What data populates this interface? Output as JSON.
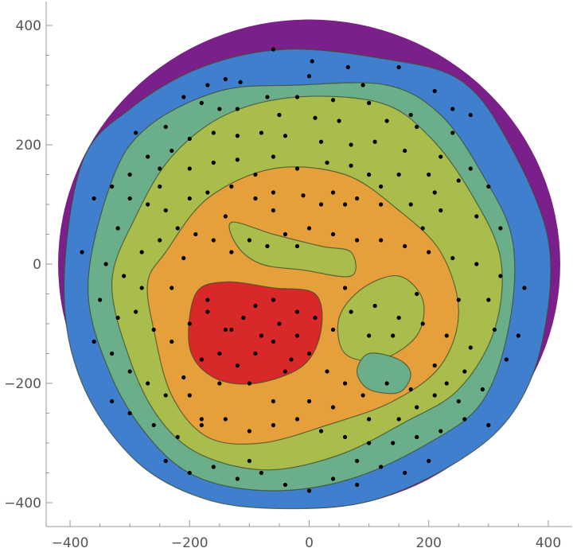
{
  "chart_data": {
    "type": "contour",
    "title": "",
    "xlabel": "",
    "ylabel": "",
    "xlim": [
      -440,
      440
    ],
    "ylim": [
      -440,
      440
    ],
    "grid": false,
    "x_ticks": [
      -400,
      -200,
      0,
      200,
      400
    ],
    "y_ticks": [
      -400,
      -200,
      0,
      200,
      400
    ],
    "x_tick_labels": [
      "−400",
      "−200",
      "0",
      "200",
      "400"
    ],
    "y_tick_labels": [
      "−400",
      "−200",
      "0",
      "200",
      "400"
    ],
    "colors": {
      "level0": "#7b1f8a",
      "level1": "#3f7fce",
      "level2": "#6aae8a",
      "level3": "#a8bd4c",
      "level4": "#e5a03c",
      "level5": "#d9282a",
      "points": "#000000"
    },
    "regions": [
      {
        "level": 0,
        "shape": "ellipse",
        "center": [
          0,
          0
        ],
        "radii": [
          420,
          410
        ]
      },
      {
        "level": 1,
        "shape": "blob",
        "points": [
          [
            -380,
            170
          ],
          [
            -300,
            260
          ],
          [
            -180,
            330
          ],
          [
            -40,
            360
          ],
          [
            120,
            345
          ],
          [
            250,
            310
          ],
          [
            330,
            210
          ],
          [
            400,
            40
          ],
          [
            390,
            -130
          ],
          [
            340,
            -250
          ],
          [
            250,
            -330
          ],
          [
            110,
            -395
          ],
          [
            -30,
            -410
          ],
          [
            -170,
            -395
          ],
          [
            -290,
            -330
          ],
          [
            -380,
            -200
          ],
          [
            -410,
            -40
          ]
        ]
      },
      {
        "level": 2,
        "shape": "blob",
        "points": [
          [
            -330,
            140
          ],
          [
            -270,
            230
          ],
          [
            -150,
            290
          ],
          [
            -20,
            300
          ],
          [
            130,
            300
          ],
          [
            220,
            250
          ],
          [
            290,
            150
          ],
          [
            340,
            40
          ],
          [
            335,
            -100
          ],
          [
            290,
            -230
          ],
          [
            200,
            -300
          ],
          [
            70,
            -360
          ],
          [
            -60,
            -380
          ],
          [
            -180,
            -360
          ],
          [
            -260,
            -300
          ],
          [
            -330,
            -190
          ],
          [
            -370,
            -40
          ]
        ]
      },
      {
        "level": 3,
        "shape": "blob",
        "points": [
          [
            -290,
            80
          ],
          [
            -230,
            180
          ],
          [
            -140,
            250
          ],
          [
            -20,
            280
          ],
          [
            120,
            270
          ],
          [
            200,
            215
          ],
          [
            270,
            120
          ],
          [
            320,
            10
          ],
          [
            310,
            -110
          ],
          [
            250,
            -210
          ],
          [
            160,
            -265
          ],
          [
            50,
            -320
          ],
          [
            -70,
            -345
          ],
          [
            -180,
            -320
          ],
          [
            -250,
            -260
          ],
          [
            -300,
            -160
          ],
          [
            -330,
            -30
          ]
        ]
      },
      {
        "level": 4,
        "shape": "blob",
        "points": [
          [
            -240,
            20
          ],
          [
            -170,
            110
          ],
          [
            -60,
            160
          ],
          [
            60,
            150
          ],
          [
            150,
            90
          ],
          [
            220,
            20
          ],
          [
            250,
            -80
          ],
          [
            220,
            -170
          ],
          [
            140,
            -230
          ],
          [
            30,
            -270
          ],
          [
            -80,
            -300
          ],
          [
            -170,
            -290
          ],
          [
            -230,
            -220
          ],
          [
            -260,
            -110
          ],
          [
            -270,
            -30
          ]
        ]
      },
      {
        "level": 3,
        "shape": "blob",
        "points": [
          [
            -130,
            70
          ],
          [
            -60,
            50
          ],
          [
            20,
            30
          ],
          [
            70,
            20
          ],
          [
            70,
            -20
          ],
          [
            -10,
            -10
          ],
          [
            -80,
            0
          ],
          [
            -120,
            30
          ]
        ]
      },
      {
        "level": 3,
        "shape": "blob",
        "points": [
          [
            150,
            -20
          ],
          [
            190,
            -60
          ],
          [
            180,
            -120
          ],
          [
            120,
            -160
          ],
          [
            60,
            -150
          ],
          [
            50,
            -90
          ],
          [
            90,
            -40
          ]
        ]
      },
      {
        "level": 5,
        "shape": "blob",
        "points": [
          [
            -190,
            -50
          ],
          [
            -140,
            -30
          ],
          [
            -60,
            -40
          ],
          [
            10,
            -50
          ],
          [
            20,
            -110
          ],
          [
            -10,
            -170
          ],
          [
            -90,
            -200
          ],
          [
            -160,
            -190
          ],
          [
            -200,
            -140
          ]
        ]
      },
      {
        "level": 2,
        "shape": "blob",
        "points": [
          [
            100,
            -150
          ],
          [
            150,
            -160
          ],
          [
            170,
            -185
          ],
          [
            150,
            -215
          ],
          [
            100,
            -210
          ],
          [
            80,
            -180
          ]
        ]
      }
    ],
    "points": [
      [
        -60,
        360
      ],
      [
        5,
        340
      ],
      [
        65,
        330
      ],
      [
        150,
        330
      ],
      [
        -170,
        300
      ],
      [
        -140,
        310
      ],
      [
        -115,
        305
      ],
      [
        -70,
        280
      ],
      [
        -20,
        280
      ],
      [
        40,
        275
      ],
      [
        100,
        270
      ],
      [
        210,
        290
      ],
      [
        -210,
        280
      ],
      [
        -180,
        270
      ],
      [
        -120,
        260
      ],
      [
        -50,
        250
      ],
      [
        10,
        245
      ],
      [
        50,
        240
      ],
      [
        130,
        240
      ],
      [
        170,
        250
      ],
      [
        240,
        260
      ],
      [
        270,
        250
      ],
      [
        -240,
        230
      ],
      [
        -200,
        210
      ],
      [
        -160,
        220
      ],
      [
        -120,
        215
      ],
      [
        -80,
        220
      ],
      [
        -40,
        215
      ],
      [
        20,
        205
      ],
      [
        70,
        200
      ],
      [
        110,
        205
      ],
      [
        160,
        190
      ],
      [
        220,
        180
      ],
      [
        270,
        160
      ],
      [
        -290,
        220
      ],
      [
        -270,
        180
      ],
      [
        -250,
        160
      ],
      [
        -230,
        190
      ],
      [
        -200,
        160
      ],
      [
        -160,
        170
      ],
      [
        -120,
        175
      ],
      [
        -90,
        150
      ],
      [
        -60,
        180
      ],
      [
        -20,
        160
      ],
      [
        30,
        170
      ],
      [
        70,
        165
      ],
      [
        100,
        150
      ],
      [
        150,
        150
      ],
      [
        200,
        150
      ],
      [
        250,
        140
      ],
      [
        300,
        130
      ],
      [
        -330,
        130
      ],
      [
        -300,
        110
      ],
      [
        -270,
        100
      ],
      [
        -240,
        90
      ],
      [
        -200,
        110
      ],
      [
        -170,
        120
      ],
      [
        -130,
        130
      ],
      [
        -90,
        110
      ],
      [
        -60,
        120
      ],
      [
        -10,
        115
      ],
      [
        40,
        120
      ],
      [
        80,
        110
      ],
      [
        120,
        100
      ],
      [
        170,
        100
      ],
      [
        220,
        90
      ],
      [
        280,
        80
      ],
      [
        320,
        60
      ],
      [
        -380,
        20
      ],
      [
        -340,
        0
      ],
      [
        -310,
        -20
      ],
      [
        -280,
        20
      ],
      [
        -250,
        40
      ],
      [
        -220,
        60
      ],
      [
        -190,
        50
      ],
      [
        -160,
        40
      ],
      [
        -130,
        20
      ],
      [
        -100,
        40
      ],
      [
        -70,
        30
      ],
      [
        -40,
        50
      ],
      [
        0,
        60
      ],
      [
        40,
        50
      ],
      [
        80,
        40
      ],
      [
        120,
        40
      ],
      [
        160,
        30
      ],
      [
        200,
        20
      ],
      [
        240,
        10
      ],
      [
        280,
        0
      ],
      [
        320,
        -20
      ],
      [
        360,
        -40
      ],
      [
        -350,
        -60
      ],
      [
        -320,
        -90
      ],
      [
        -290,
        -80
      ],
      [
        -260,
        -110
      ],
      [
        -230,
        -130
      ],
      [
        -200,
        -100
      ],
      [
        -170,
        -80
      ],
      [
        -140,
        -110
      ],
      [
        -110,
        -90
      ],
      [
        -80,
        -120
      ],
      [
        -50,
        -100
      ],
      [
        -20,
        -80
      ],
      [
        10,
        -90
      ],
      [
        40,
        -110
      ],
      [
        70,
        -80
      ],
      [
        110,
        -70
      ],
      [
        150,
        -90
      ],
      [
        190,
        -100
      ],
      [
        230,
        -120
      ],
      [
        270,
        -140
      ],
      [
        310,
        -110
      ],
      [
        350,
        -120
      ],
      [
        -330,
        -150
      ],
      [
        -300,
        -180
      ],
      [
        -270,
        -200
      ],
      [
        -240,
        -220
      ],
      [
        -210,
        -190
      ],
      [
        -180,
        -160
      ],
      [
        -150,
        -150
      ],
      [
        -120,
        -170
      ],
      [
        -90,
        -150
      ],
      [
        -60,
        -130
      ],
      [
        -30,
        -160
      ],
      [
        0,
        -150
      ],
      [
        30,
        -180
      ],
      [
        60,
        -200
      ],
      [
        90,
        -220
      ],
      [
        130,
        -200
      ],
      [
        170,
        -210
      ],
      [
        210,
        -220
      ],
      [
        250,
        -230
      ],
      [
        290,
        -210
      ],
      [
        -300,
        -250
      ],
      [
        -260,
        -270
      ],
      [
        -220,
        -290
      ],
      [
        -180,
        -270
      ],
      [
        -140,
        -260
      ],
      [
        -100,
        -280
      ],
      [
        -60,
        -270
      ],
      [
        -20,
        -260
      ],
      [
        20,
        -280
      ],
      [
        60,
        -290
      ],
      [
        100,
        -300
      ],
      [
        140,
        -300
      ],
      [
        180,
        -290
      ],
      [
        220,
        -280
      ],
      [
        260,
        -260
      ],
      [
        -240,
        -330
      ],
      [
        -200,
        -350
      ],
      [
        -160,
        -340
      ],
      [
        -120,
        -360
      ],
      [
        -80,
        -350
      ],
      [
        -40,
        -370
      ],
      [
        0,
        -380
      ],
      [
        40,
        -360
      ],
      [
        80,
        -370
      ],
      [
        120,
        -340
      ],
      [
        160,
        -350
      ],
      [
        200,
        -330
      ],
      [
        -100,
        -200
      ],
      [
        -130,
        -110
      ],
      [
        -170,
        -60
      ],
      [
        -60,
        -60
      ],
      [
        -20,
        -120
      ],
      [
        -150,
        -200
      ],
      [
        -90,
        -70
      ],
      [
        -40,
        -180
      ],
      [
        -200,
        -220
      ],
      [
        60,
        -40
      ],
      [
        100,
        -120
      ],
      [
        180,
        -50
      ],
      [
        210,
        -170
      ],
      [
        140,
        -120
      ],
      [
        -280,
        -40
      ],
      [
        -100,
        -330
      ],
      [
        80,
        -330
      ],
      [
        150,
        -260
      ],
      [
        230,
        -200
      ],
      [
        250,
        -60
      ],
      [
        300,
        -60
      ],
      [
        330,
        -160
      ],
      [
        -320,
        60
      ],
      [
        -250,
        130
      ],
      [
        20,
        100
      ],
      [
        60,
        100
      ],
      [
        120,
        130
      ],
      [
        190,
        60
      ],
      [
        -60,
        90
      ],
      [
        -20,
        30
      ],
      [
        -140,
        80
      ],
      [
        -210,
        10
      ],
      [
        -230,
        -40
      ],
      [
        -180,
        -260
      ],
      [
        -60,
        -230
      ],
      [
        0,
        -230
      ],
      [
        40,
        -240
      ],
      [
        100,
        -260
      ],
      [
        180,
        -240
      ],
      [
        260,
        -180
      ],
      [
        300,
        -270
      ],
      [
        -330,
        -230
      ],
      [
        -360,
        -130
      ],
      [
        -360,
        110
      ],
      [
        -300,
        150
      ],
      [
        -150,
        260
      ],
      [
        0,
        315
      ],
      [
        90,
        300
      ],
      [
        180,
        230
      ],
      [
        240,
        220
      ],
      [
        210,
        120
      ]
    ]
  }
}
